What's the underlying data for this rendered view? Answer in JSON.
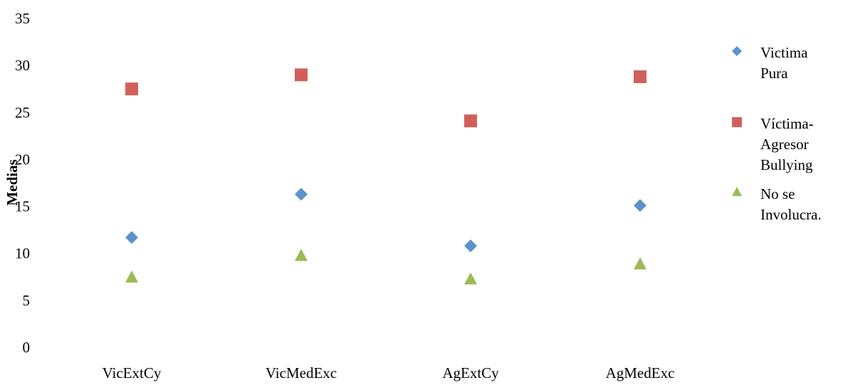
{
  "chart_data": {
    "type": "scatter",
    "title": "",
    "xlabel": "",
    "ylabel": "Medias",
    "categories": [
      "VicExtCy",
      "VicMedExc",
      "AgExtCy",
      "AgMedExc"
    ],
    "ylim": [
      0,
      35
    ],
    "yticks": [
      "0",
      "5",
      "10",
      "15",
      "20",
      "25",
      "30",
      "35"
    ],
    "grid": false,
    "legend_position": "right",
    "series": [
      {
        "name": "Victima Pura",
        "name_lines": [
          "Victima",
          "Pura"
        ],
        "marker": "diamond",
        "color": "#5b93cc",
        "values": [
          11.7,
          16.3,
          10.8,
          15.1
        ]
      },
      {
        "name": "Víctima-Agresor Bullying",
        "name_lines": [
          "Víctima-",
          "Agresor",
          "Bullying"
        ],
        "marker": "square",
        "color": "#d1605c",
        "values": [
          27.5,
          29.0,
          24.1,
          28.8
        ]
      },
      {
        "name": "No se Involucra.",
        "name_lines": [
          "No se",
          "Involucra."
        ],
        "marker": "triangle",
        "color": "#9bbb59",
        "values": [
          7.5,
          9.8,
          7.3,
          8.9
        ]
      }
    ]
  }
}
